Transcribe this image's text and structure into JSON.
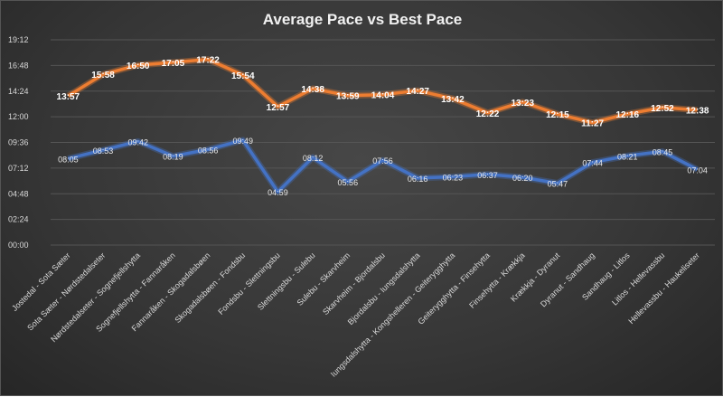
{
  "chart_data": {
    "type": "line",
    "title": "Average Pace vs Best Pace",
    "xlabel": "",
    "ylabel": "",
    "ylim": [
      "00:00",
      "19:12"
    ],
    "y_ticks": [
      "00:00",
      "02:24",
      "04:48",
      "07:12",
      "09:36",
      "12:00",
      "14:24",
      "16:48",
      "19:12"
    ],
    "grid": true,
    "legend": "none",
    "categories": [
      "Jostedal - Sota Sæter",
      "Sota Sæter - Nørdstedalseter",
      "Nørdstedalseter - Sognefjellshytta",
      "Sognefjellshytta - Fannaråken",
      "Fannaråken - Skogadalsbøen",
      "Skogadalsbøen - Fondsbu",
      "Fondsbu - Slettningsbu",
      "Slettningsbu - Sulebu",
      "Sulebu - Skarvheim",
      "Skarvheim - Bjordalsbu",
      "Bjordalsbu - Iungsdalshytta",
      "Iungsdalshytta - Kongshelleren - Geiterygghytta",
      "Geiterygghytta - Finsehytta",
      "Finsehytta - Krækkja",
      "Krækkja - Dyranut",
      "Dyranut - Sandhaug",
      "Sandhaug - Litlos",
      "Litlos - Hellevassbu",
      "Hellevassbu - Haukeliseter"
    ],
    "series": [
      {
        "name": "Average Pace",
        "color": "#ED7D31",
        "values": [
          "13:57",
          "15:58",
          "16:50",
          "17:05",
          "17:22",
          "15:54",
          "12:57",
          "14:38",
          "13:59",
          "14:04",
          "14:27",
          "13:42",
          "12:22",
          "13:23",
          "12:15",
          "11:27",
          "12:16",
          "12:52",
          "12:38"
        ]
      },
      {
        "name": "Best Pace",
        "color": "#4472C4",
        "values": [
          "08:05",
          "08:53",
          "09:42",
          "08:19",
          "08:56",
          "09:49",
          "04:59",
          "08:12",
          "05:56",
          "07:56",
          "06:16",
          "06:23",
          "06:37",
          "06:20",
          "05:47",
          "07:44",
          "08:21",
          "08:45",
          "07:04"
        ]
      }
    ]
  }
}
